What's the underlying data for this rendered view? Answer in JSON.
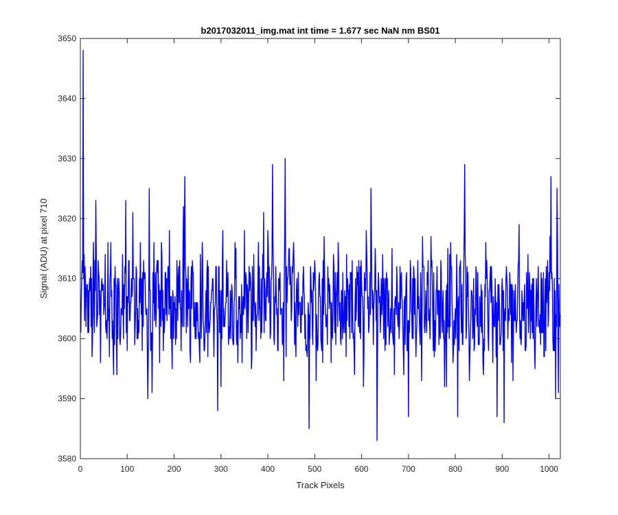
{
  "chart_data": {
    "type": "line",
    "title": "b2017032011_img.mat int time = 1.677 sec  NaN nm BS01",
    "xlabel": "Track Pixels",
    "ylabel": "Signal (ADU) at pixel 710",
    "xlim": [
      0,
      1024
    ],
    "ylim": [
      3580,
      3650
    ],
    "xticks": [
      0,
      100,
      200,
      300,
      400,
      500,
      600,
      700,
      800,
      900,
      1000
    ],
    "yticks": [
      3580,
      3590,
      3600,
      3610,
      3620,
      3630,
      3640,
      3650
    ],
    "grid": false,
    "series": [
      {
        "color": "#0000ff",
        "note_visible": "approximately 1024 samples; values estimated from gridlines",
        "x_start": 1,
        "x_step": 1,
        "anchors": [
          [
            1,
            3601
          ],
          [
            2,
            3607
          ],
          [
            3,
            3610
          ],
          [
            4,
            3613
          ],
          [
            5,
            3611
          ],
          [
            6,
            3648
          ],
          [
            7,
            3610
          ],
          [
            8,
            3614
          ],
          [
            9,
            3603
          ],
          [
            10,
            3612
          ],
          [
            12,
            3602
          ],
          [
            14,
            3609
          ],
          [
            18,
            3601
          ],
          [
            22,
            3612
          ],
          [
            25,
            3597
          ],
          [
            28,
            3616
          ],
          [
            30,
            3601
          ],
          [
            33,
            3623
          ],
          [
            36,
            3603
          ],
          [
            39,
            3611
          ],
          [
            43,
            3596
          ],
          [
            46,
            3610
          ],
          [
            50,
            3604
          ],
          [
            53,
            3614
          ],
          [
            56,
            3603
          ],
          [
            59,
            3616
          ],
          [
            62,
            3597
          ],
          [
            65,
            3616
          ],
          [
            68,
            3600
          ],
          [
            71,
            3594
          ],
          [
            74,
            3612
          ],
          [
            78,
            3594
          ],
          [
            82,
            3610
          ],
          [
            86,
            3601
          ],
          [
            90,
            3614
          ],
          [
            94,
            3605
          ],
          [
            97,
            3623
          ],
          [
            100,
            3598
          ],
          [
            104,
            3613
          ],
          [
            108,
            3606
          ],
          [
            112,
            3621
          ],
          [
            116,
            3599
          ],
          [
            120,
            3611
          ],
          [
            124,
            3603
          ],
          [
            128,
            3616
          ],
          [
            132,
            3598
          ],
          [
            136,
            3610
          ],
          [
            140,
            3604
          ],
          [
            144,
            3590
          ],
          [
            147,
            3625
          ],
          [
            150,
            3598
          ],
          [
            153,
            3591
          ],
          [
            157,
            3616
          ],
          [
            161,
            3602
          ],
          [
            165,
            3611
          ],
          [
            169,
            3596
          ],
          [
            173,
            3616
          ],
          [
            177,
            3598
          ],
          [
            181,
            3611
          ],
          [
            185,
            3603
          ],
          [
            190,
            3618
          ],
          [
            195,
            3599
          ],
          [
            200,
            3606
          ],
          [
            205,
            3600
          ],
          [
            210,
            3612
          ],
          [
            215,
            3598
          ],
          [
            220,
            3622
          ],
          [
            223,
            3627
          ],
          [
            226,
            3601
          ],
          [
            230,
            3612
          ],
          [
            235,
            3596
          ],
          [
            240,
            3611
          ],
          [
            245,
            3600
          ],
          [
            250,
            3606
          ],
          [
            255,
            3596
          ],
          [
            260,
            3616
          ],
          [
            265,
            3598
          ],
          [
            270,
            3611
          ],
          [
            275,
            3601
          ],
          [
            280,
            3608
          ],
          [
            285,
            3597
          ],
          [
            290,
            3612
          ],
          [
            293,
            3588
          ],
          [
            296,
            3612
          ],
          [
            300,
            3592
          ],
          [
            304,
            3618
          ],
          [
            308,
            3602
          ],
          [
            312,
            3613
          ],
          [
            316,
            3599
          ],
          [
            320,
            3608
          ],
          [
            325,
            3600
          ],
          [
            330,
            3616
          ],
          [
            335,
            3603
          ],
          [
            340,
            3607
          ],
          [
            345,
            3596
          ],
          [
            350,
            3618
          ],
          [
            355,
            3600
          ],
          [
            360,
            3612
          ],
          [
            365,
            3595
          ],
          [
            370,
            3614
          ],
          [
            375,
            3598
          ],
          [
            380,
            3616
          ],
          [
            385,
            3600
          ],
          [
            390,
            3610
          ],
          [
            395,
            3603
          ],
          [
            400,
            3618
          ],
          [
            405,
            3600
          ],
          [
            410,
            3629
          ],
          [
            413,
            3600
          ],
          [
            417,
            3612
          ],
          [
            421,
            3598
          ],
          [
            425,
            3610
          ],
          [
            430,
            3605
          ],
          [
            434,
            3593
          ],
          [
            437,
            3630
          ],
          [
            441,
            3606
          ],
          [
            445,
            3615
          ],
          [
            450,
            3603
          ],
          [
            455,
            3616
          ],
          [
            460,
            3597
          ],
          [
            465,
            3611
          ],
          [
            470,
            3601
          ],
          [
            475,
            3610
          ],
          [
            480,
            3604
          ],
          [
            485,
            3600
          ],
          [
            488,
            3585
          ],
          [
            491,
            3612
          ],
          [
            495,
            3601
          ],
          [
            500,
            3613
          ],
          [
            505,
            3600
          ],
          [
            510,
            3611
          ],
          [
            515,
            3598
          ],
          [
            520,
            3617
          ],
          [
            525,
            3602
          ],
          [
            530,
            3610
          ],
          [
            535,
            3596
          ],
          [
            540,
            3614
          ],
          [
            545,
            3599
          ],
          [
            550,
            3616
          ],
          [
            555,
            3600
          ],
          [
            560,
            3611
          ],
          [
            565,
            3601
          ],
          [
            570,
            3610
          ],
          [
            575,
            3600
          ],
          [
            580,
            3613
          ],
          [
            585,
            3594
          ],
          [
            590,
            3612
          ],
          [
            595,
            3603
          ],
          [
            600,
            3609
          ],
          [
            605,
            3597
          ],
          [
            610,
            3618
          ],
          [
            615,
            3601
          ],
          [
            620,
            3625
          ],
          [
            625,
            3599
          ],
          [
            630,
            3612
          ],
          [
            633,
            3583
          ],
          [
            636,
            3611
          ],
          [
            640,
            3601
          ],
          [
            645,
            3614
          ],
          [
            650,
            3598
          ],
          [
            655,
            3610
          ],
          [
            660,
            3601
          ],
          [
            665,
            3615
          ],
          [
            670,
            3594
          ],
          [
            675,
            3612
          ],
          [
            680,
            3600
          ],
          [
            685,
            3611
          ],
          [
            690,
            3594
          ],
          [
            695,
            3610
          ],
          [
            700,
            3587
          ],
          [
            704,
            3613
          ],
          [
            708,
            3600
          ],
          [
            712,
            3611
          ],
          [
            716,
            3597
          ],
          [
            720,
            3613
          ],
          [
            725,
            3599
          ],
          [
            730,
            3617
          ],
          [
            735,
            3601
          ],
          [
            740,
            3611
          ],
          [
            745,
            3603
          ],
          [
            750,
            3613
          ],
          [
            755,
            3597
          ],
          [
            760,
            3608
          ],
          [
            765,
            3599
          ],
          [
            770,
            3611
          ],
          [
            775,
            3600
          ],
          [
            780,
            3608
          ],
          [
            785,
            3602
          ],
          [
            790,
            3616
          ],
          [
            795,
            3596
          ],
          [
            800,
            3605
          ],
          [
            805,
            3587
          ],
          [
            810,
            3612
          ],
          [
            815,
            3599
          ],
          [
            818,
            3612
          ],
          [
            820,
            3629
          ],
          [
            823,
            3600
          ],
          [
            827,
            3611
          ],
          [
            830,
            3593
          ],
          [
            835,
            3608
          ],
          [
            840,
            3598
          ],
          [
            845,
            3611
          ],
          [
            850,
            3600
          ],
          [
            855,
            3609
          ],
          [
            860,
            3594
          ],
          [
            865,
            3616
          ],
          [
            870,
            3600
          ],
          [
            875,
            3612
          ],
          [
            880,
            3596
          ],
          [
            885,
            3610
          ],
          [
            889,
            3587
          ],
          [
            893,
            3609
          ],
          [
            897,
            3600
          ],
          [
            901,
            3607
          ],
          [
            904,
            3586
          ],
          [
            908,
            3610
          ],
          [
            912,
            3600
          ],
          [
            916,
            3611
          ],
          [
            920,
            3596
          ],
          [
            925,
            3608
          ],
          [
            930,
            3601
          ],
          [
            935,
            3613
          ],
          [
            940,
            3599
          ],
          [
            945,
            3606
          ],
          [
            950,
            3598
          ],
          [
            955,
            3614
          ],
          [
            960,
            3600
          ],
          [
            965,
            3610
          ],
          [
            970,
            3595
          ],
          [
            975,
            3606
          ],
          [
            980,
            3601
          ],
          [
            985,
            3610
          ],
          [
            990,
            3597
          ],
          [
            995,
            3606
          ],
          [
            1000,
            3611
          ],
          [
            1004,
            3627
          ],
          [
            1008,
            3600
          ],
          [
            1012,
            3598
          ],
          [
            1014,
            3590
          ],
          [
            1017,
            3625
          ],
          [
            1020,
            3591
          ],
          [
            1023,
            3602
          ],
          [
            1024,
            3604
          ]
        ]
      }
    ]
  }
}
